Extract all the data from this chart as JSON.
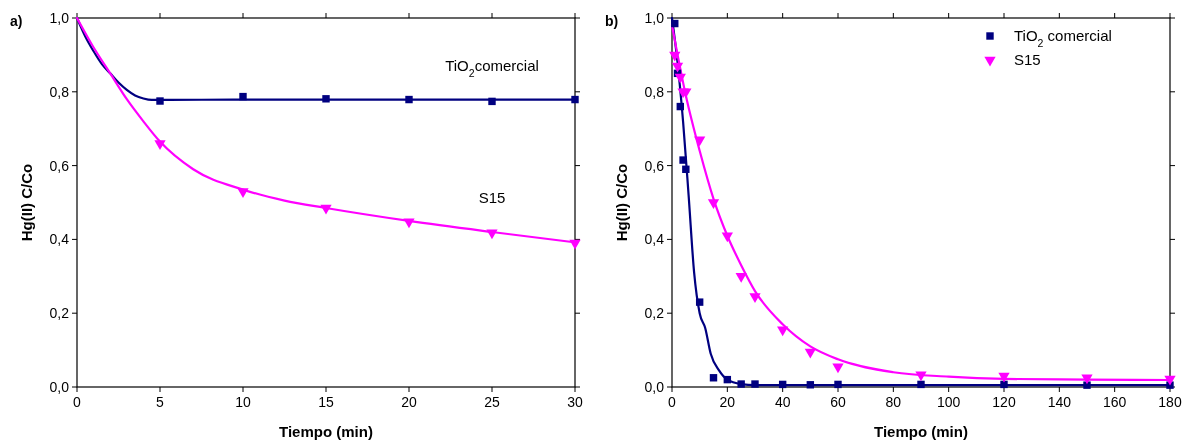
{
  "chart_data": [
    {
      "type": "scatter",
      "title": "a)",
      "xlabel": "Tiempo (min)",
      "ylabel": "Hg(II) C/Co",
      "xlim": [
        0,
        30
      ],
      "ylim": [
        0,
        1
      ],
      "xticks": [
        0,
        5,
        10,
        15,
        20,
        25,
        30
      ],
      "yticks": [
        {
          "value": 0,
          "label": "0,0"
        },
        {
          "value": 0.2,
          "label": "0,2"
        },
        {
          "value": 0.4,
          "label": "0,4"
        },
        {
          "value": 0.6,
          "label": "0,6"
        },
        {
          "value": 0.8,
          "label": "0,8"
        },
        {
          "value": 1,
          "label": "1,0"
        }
      ],
      "legend": false,
      "grid": false,
      "series": [
        {
          "type": "line",
          "color": "#000080",
          "line_style": "solid",
          "marker": "none",
          "x": [
            0,
            0.5,
            1,
            1.5,
            2,
            2.5,
            3,
            3.5,
            4,
            4.5,
            5,
            10,
            15,
            20,
            25,
            30
          ],
          "values": [
            1,
            0.95,
            0.91,
            0.875,
            0.85,
            0.825,
            0.805,
            0.79,
            0.782,
            0.778,
            0.778,
            0.779,
            0.779,
            0.779,
            0.779,
            0.779
          ]
        },
        {
          "type": "line",
          "color": "#ff00ff",
          "line_style": "solid",
          "marker": "none",
          "x": [
            0,
            1,
            2,
            3,
            4,
            5,
            7,
            10,
            12.5,
            15,
            20,
            25,
            30
          ],
          "values": [
            1,
            0.92,
            0.85,
            0.78,
            0.72,
            0.665,
            0.59,
            0.535,
            0.505,
            0.485,
            0.45,
            0.42,
            0.392
          ]
        },
        {
          "name": "TiO$_{2}$comercial",
          "color": "#000080",
          "marker": "square",
          "x": [
            5,
            10,
            15,
            20,
            25,
            30
          ],
          "values": [
            0.775,
            0.787,
            0.781,
            0.779,
            0.774,
            0.779
          ]
        },
        {
          "name": "S15",
          "color": "#ff00ff",
          "marker": "triangle",
          "x": [
            5,
            10,
            15,
            20,
            25,
            30
          ],
          "values": [
            0.66,
            0.53,
            0.485,
            0.448,
            0.418,
            0.39
          ]
        }
      ]
    },
    {
      "type": "scatter",
      "title": "b)",
      "xlabel": "Tiempo (min)",
      "ylabel": "Hg(II) C/Co",
      "xlim": [
        0,
        180
      ],
      "ylim": [
        0,
        1
      ],
      "xticks": [
        0,
        20,
        40,
        60,
        80,
        100,
        120,
        140,
        160,
        180
      ],
      "yticks": [
        {
          "value": 0,
          "label": "0,0"
        },
        {
          "value": 0.2,
          "label": "0,2"
        },
        {
          "value": 0.4,
          "label": "0,4"
        },
        {
          "value": 0.6,
          "label": "0,6"
        },
        {
          "value": 0.8,
          "label": "0,8"
        },
        {
          "value": 1,
          "label": "1,0"
        }
      ],
      "legend": "top right",
      "grid": false,
      "series": [
        {
          "type": "line",
          "color": "#000080",
          "line_style": "solid",
          "marker": "none",
          "x": [
            0,
            2,
            4,
            6,
            8,
            10,
            12,
            14,
            17,
            20,
            25,
            30,
            60,
            180
          ],
          "values": [
            1,
            0.88,
            0.72,
            0.52,
            0.31,
            0.2,
            0.16,
            0.09,
            0.045,
            0.02,
            0.008,
            0.005,
            0.005,
            0.005
          ]
        },
        {
          "type": "line",
          "color": "#ff00ff",
          "line_style": "solid",
          "marker": "none",
          "x": [
            0,
            5,
            10,
            15,
            20,
            25,
            30,
            40,
            50,
            60,
            80,
            100,
            120,
            150,
            180
          ],
          "values": [
            0.98,
            0.79,
            0.64,
            0.51,
            0.41,
            0.33,
            0.26,
            0.17,
            0.11,
            0.075,
            0.04,
            0.028,
            0.022,
            0.02,
            0.019
          ]
        },
        {
          "name": "TiO$_{2}$ comercial",
          "color": "#000080",
          "marker": "square",
          "x": [
            1,
            2,
            3,
            4,
            5,
            10,
            15,
            20,
            25,
            30,
            40,
            50,
            60,
            90,
            120,
            150,
            180
          ],
          "values": [
            0.985,
            0.85,
            0.76,
            0.615,
            0.59,
            0.23,
            0.025,
            0.02,
            0.008,
            0.008,
            0.007,
            0.006,
            0.007,
            0.007,
            0.007,
            0.005,
            0.005
          ]
        },
        {
          "name": "S15",
          "color": "#ff00ff",
          "marker": "triangle",
          "x": [
            1,
            2,
            3,
            4,
            5,
            10,
            15,
            20,
            25,
            30,
            40,
            50,
            60,
            90,
            120,
            150,
            180
          ],
          "values": [
            0.9,
            0.87,
            0.84,
            0.8,
            0.8,
            0.67,
            0.5,
            0.41,
            0.3,
            0.245,
            0.155,
            0.095,
            0.055,
            0.033,
            0.03,
            0.025,
            0.022
          ]
        }
      ]
    }
  ]
}
